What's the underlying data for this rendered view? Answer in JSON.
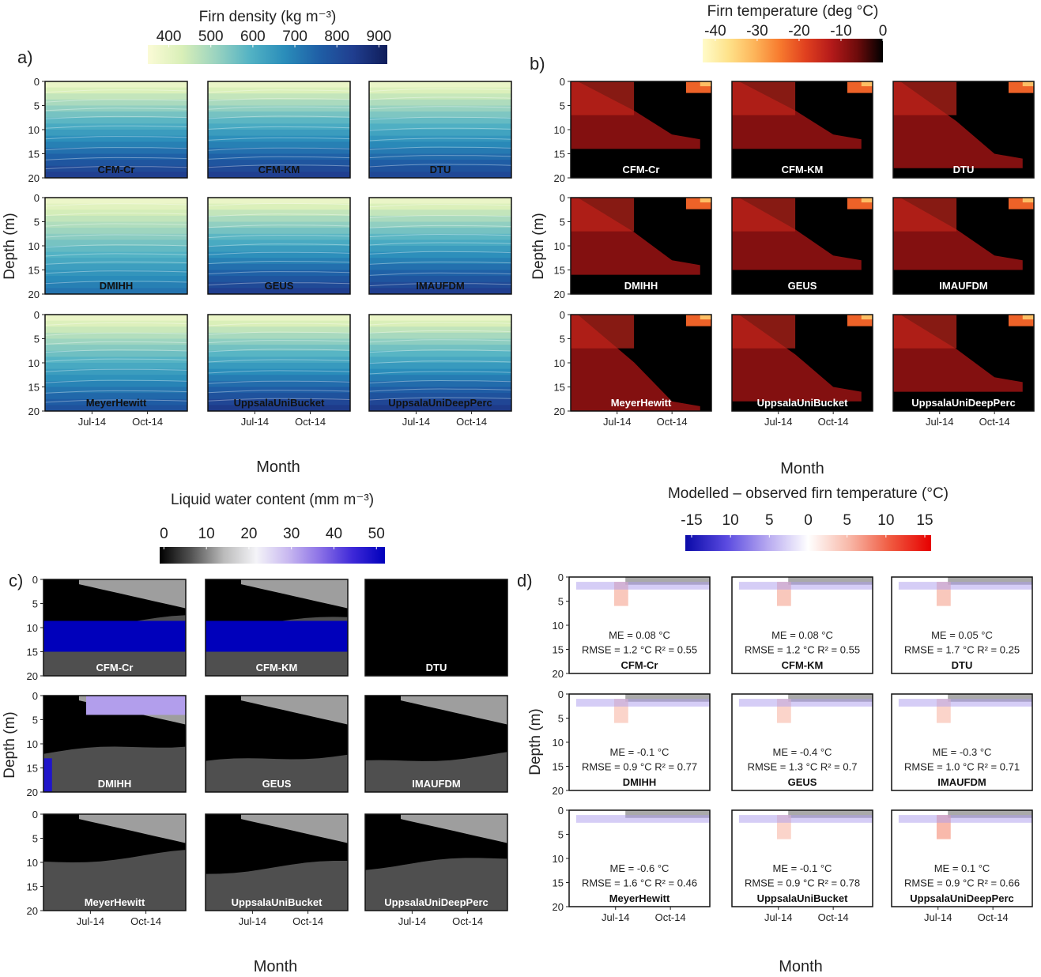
{
  "chart_data": [
    {
      "type": "heatmap",
      "panel_label": "a)",
      "colorbar_title": "Firn density (kg m⁻³)",
      "colorbar_ticks": [
        "400",
        "500",
        "600",
        "700",
        "800",
        "900"
      ],
      "colorbar_range": [
        350,
        920
      ],
      "colorbar_colors": [
        "#fbfbd6",
        "#d9efb8",
        "#9ad3c0",
        "#52b2c4",
        "#2a8dba",
        "#1f5fa6",
        "#203e8f",
        "#0f1d5a"
      ],
      "ylabel": "Depth (m)",
      "xlabel": "Month",
      "ylim": [
        0,
        20
      ],
      "yticks": [
        "0",
        "5",
        "10",
        "15",
        "20"
      ],
      "xticks": [
        "Jul-14",
        "Oct-14"
      ],
      "models": [
        "CFM-Cr",
        "CFM-KM",
        "DTU",
        "DMIHH",
        "GEUS",
        "IMAUFDM",
        "MeyerHewitt",
        "UppsalaUniBucket",
        "UppsalaUniDeepPerc"
      ]
    },
    {
      "type": "heatmap",
      "panel_label": "b)",
      "colorbar_title": "Firn temperature (deg °C)",
      "colorbar_ticks": [
        "-40",
        "-30",
        "-20",
        "-10",
        "0"
      ],
      "colorbar_range": [
        -43,
        0
      ],
      "colorbar_colors": [
        "#fffbc9",
        "#fee28a",
        "#fdb55a",
        "#f77a2e",
        "#e0401f",
        "#b41a1a",
        "#6e0b0b",
        "#000000"
      ],
      "ylabel": "Depth (m)",
      "xlabel": "Month",
      "ylim": [
        0,
        20
      ],
      "yticks": [
        "0",
        "5",
        "10",
        "15",
        "20"
      ],
      "xticks": [
        "Jul-14",
        "Oct-14"
      ],
      "models": [
        "CFM-Cr",
        "CFM-KM",
        "DTU",
        "DMIHH",
        "GEUS",
        "IMAUFDM",
        "MeyerHewitt",
        "UppsalaUniBucket",
        "UppsalaUniDeepPerc"
      ]
    },
    {
      "type": "heatmap",
      "panel_label": "c)",
      "colorbar_title": "Liquid water content (mm m⁻³)",
      "colorbar_ticks": [
        "0",
        "10",
        "20",
        "30",
        "40",
        "50"
      ],
      "colorbar_range": [
        -1,
        52
      ],
      "colorbar_colors": [
        "#000000",
        "#555555",
        "#bbbbbb",
        "#f4f4f8",
        "#c8b8f0",
        "#8a70e6",
        "#3d28d8",
        "#0000bb"
      ],
      "ylabel": "Depth (m)",
      "xlabel": "Month",
      "ylim": [
        0,
        20
      ],
      "yticks": [
        "0",
        "5",
        "10",
        "15",
        "20"
      ],
      "xticks": [
        "Jul-14",
        "Oct-14"
      ],
      "models": [
        "CFM-Cr",
        "CFM-KM",
        "DTU",
        "DMIHH",
        "GEUS",
        "IMAUFDM",
        "MeyerHewitt",
        "UppsalaUniBucket",
        "UppsalaUniDeepPerc"
      ]
    },
    {
      "type": "heatmap",
      "panel_label": "d)",
      "colorbar_title": "Modelled – observed firn temperature (°C)",
      "colorbar_ticks": [
        "-15",
        "10",
        "5",
        "0",
        "5",
        "10",
        "15"
      ],
      "colorbar_range": [
        -16,
        16
      ],
      "colorbar_colors": [
        "#0a0aa8",
        "#5a4ae0",
        "#b6a8f0",
        "#ffffff",
        "#f8b8a8",
        "#f05a40",
        "#e60000"
      ],
      "ylabel": "Depth (m)",
      "xlabel": "Month",
      "ylim": [
        0,
        20
      ],
      "yticks": [
        "0",
        "5",
        "10",
        "15",
        "20"
      ],
      "xticks": [
        "Jul-14",
        "Oct-14"
      ],
      "models": [
        "CFM-Cr",
        "CFM-KM",
        "DTU",
        "DMIHH",
        "GEUS",
        "IMAUFDM",
        "MeyerHewitt",
        "UppsalaUniBucket",
        "UppsalaUniDeepPerc"
      ],
      "stats": [
        {
          "me": "ME = 0.08 °C",
          "rmse": "RMSE = 1.2 °C",
          "r2": "R² = 0.55"
        },
        {
          "me": "ME = 0.08 °C",
          "rmse": "RMSE = 1.2 °C",
          "r2": "R² = 0.55"
        },
        {
          "me": "ME = 0.05 °C",
          "rmse": "RMSE = 1.7 °C",
          "r2": "R² = 0.25"
        },
        {
          "me": "ME = -0.1 °C",
          "rmse": "RMSE = 0.9 °C",
          "r2": "R² = 0.77"
        },
        {
          "me": "ME = -0.4 °C",
          "rmse": "RMSE = 1.3 °C",
          "r2": "R² = 0.7"
        },
        {
          "me": "ME = -0.3 °C",
          "rmse": "RMSE = 1.0 °C",
          "r2": "R² = 0.71"
        },
        {
          "me": "ME = -0.6 °C",
          "rmse": "RMSE = 1.6 °C",
          "r2": "R² = 0.46"
        },
        {
          "me": "ME = -0.1 °C",
          "rmse": "RMSE = 0.9 °C",
          "r2": "R² = 0.78"
        },
        {
          "me": "ME = 0.1 °C",
          "rmse": "RMSE = 0.9 °C",
          "r2": "R² = 0.66"
        }
      ]
    }
  ]
}
